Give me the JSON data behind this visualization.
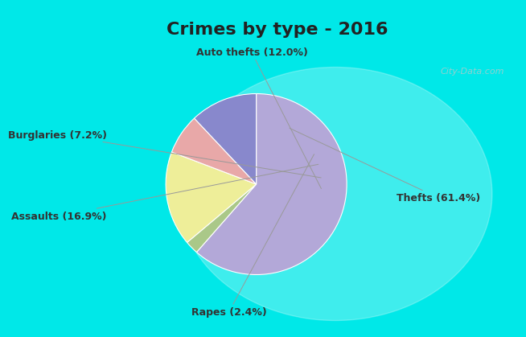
{
  "title": "Crimes by type - 2016",
  "slices": [
    {
      "label": "Thefts (61.4%)",
      "value": 61.4,
      "color": "#b3a8d8"
    },
    {
      "label": "Auto thefts (12.0%)",
      "value": 12.0,
      "color": "#8888cc"
    },
    {
      "label": "Burglaries (7.2%)",
      "value": 7.2,
      "color": "#e8a8a8"
    },
    {
      "label": "Assaults (16.9%)",
      "value": 16.9,
      "color": "#eeee99"
    },
    {
      "label": "Rapes (2.4%)",
      "value": 2.4,
      "color": "#aac888"
    }
  ],
  "bg_top": "#00e8e8",
  "bg_main": "#d8f0d8",
  "title_color": "#222222",
  "title_fontsize": 16,
  "label_fontsize": 9,
  "watermark": "City-Data.com",
  "watermark_color": "#aacccc"
}
